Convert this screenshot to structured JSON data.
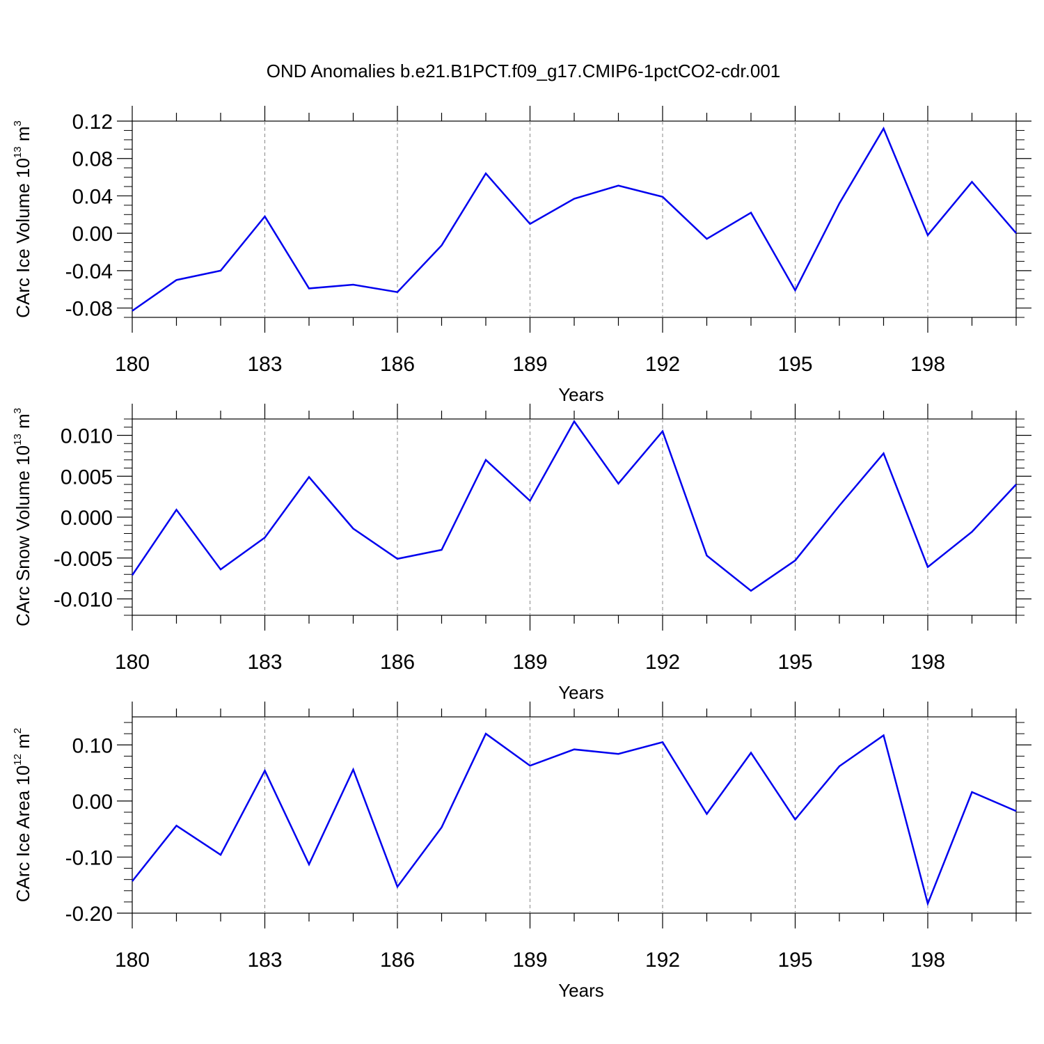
{
  "title": "OND Anomalies b.e21.B1PCT.f09_g17.CMIP6-1pctCO2-cdr.001",
  "colors": {
    "line": "#0000ee",
    "frame": "#000000",
    "grid": "#888888"
  },
  "chart_data": [
    {
      "type": "line",
      "xlabel": "Years",
      "ylabel": {
        "prefix": "CArc Ice Volume 10",
        "exponent": "13",
        "unit": " m",
        "unit_exponent": "3"
      },
      "xlim": [
        180,
        200
      ],
      "ylim": [
        -0.09,
        0.12
      ],
      "x_ticks": [
        180,
        183,
        186,
        189,
        192,
        195,
        198
      ],
      "y_ticks": [
        -0.08,
        -0.04,
        0.0,
        0.04,
        0.08,
        0.12
      ],
      "y_tick_labels": [
        "-0.08",
        "-0.04",
        "0.00",
        "0.04",
        "0.08",
        "0.12"
      ],
      "y_minor_step": 0.01,
      "grid": "vertical dashed at major x ticks",
      "x": [
        180,
        181,
        182,
        183,
        184,
        185,
        186,
        187,
        188,
        189,
        190,
        191,
        192,
        193,
        194,
        195,
        196,
        197,
        198,
        199,
        200
      ],
      "values": [
        -0.083,
        -0.05,
        -0.04,
        0.018,
        -0.059,
        -0.055,
        -0.063,
        -0.013,
        0.064,
        0.01,
        0.037,
        0.051,
        0.039,
        -0.006,
        0.022,
        -0.061,
        0.032,
        0.112,
        -0.002,
        0.055,
        0.0
      ]
    },
    {
      "type": "line",
      "xlabel": "Years",
      "ylabel": {
        "prefix": "CArc Snow Volume 10",
        "exponent": "13",
        "unit": " m",
        "unit_exponent": "3"
      },
      "xlim": [
        180,
        200
      ],
      "ylim": [
        -0.012,
        0.012
      ],
      "x_ticks": [
        180,
        183,
        186,
        189,
        192,
        195,
        198
      ],
      "y_ticks": [
        -0.01,
        -0.005,
        0.0,
        0.005,
        0.01
      ],
      "y_tick_labels": [
        "-0.010",
        "-0.005",
        "0.000",
        "0.005",
        "0.010"
      ],
      "y_minor_step": 0.001,
      "grid": "vertical dashed at major x ticks",
      "x": [
        180,
        181,
        182,
        183,
        184,
        185,
        186,
        187,
        188,
        189,
        190,
        191,
        192,
        193,
        194,
        195,
        196,
        197,
        198,
        199,
        200
      ],
      "values": [
        -0.0071,
        0.0009,
        -0.0064,
        -0.0025,
        0.0049,
        -0.0014,
        -0.0051,
        -0.004,
        0.007,
        0.002,
        0.0117,
        0.0041,
        0.0105,
        -0.0047,
        -0.009,
        -0.0053,
        0.0014,
        0.0078,
        -0.0061,
        -0.0018,
        0.004
      ]
    },
    {
      "type": "line",
      "xlabel": "Years",
      "ylabel": {
        "prefix": "CArc Ice Area 10",
        "exponent": "12",
        "unit": " m",
        "unit_exponent": "2"
      },
      "xlim": [
        180,
        200
      ],
      "ylim": [
        -0.2,
        0.15
      ],
      "x_ticks": [
        180,
        183,
        186,
        189,
        192,
        195,
        198
      ],
      "y_ticks": [
        -0.2,
        -0.1,
        0.0,
        0.1
      ],
      "y_tick_labels": [
        "-0.20",
        "-0.10",
        "0.00",
        "0.10"
      ],
      "y_minor_step": 0.02,
      "grid": "vertical dashed at major x ticks",
      "x": [
        180,
        181,
        182,
        183,
        184,
        185,
        186,
        187,
        188,
        189,
        190,
        191,
        192,
        193,
        194,
        195,
        196,
        197,
        198,
        199,
        200
      ],
      "values": [
        -0.143,
        -0.044,
        -0.096,
        0.054,
        -0.113,
        0.056,
        -0.153,
        -0.047,
        0.12,
        0.063,
        0.092,
        0.084,
        0.105,
        -0.023,
        0.086,
        -0.033,
        0.062,
        0.117,
        -0.183,
        0.016,
        -0.018
      ]
    }
  ]
}
